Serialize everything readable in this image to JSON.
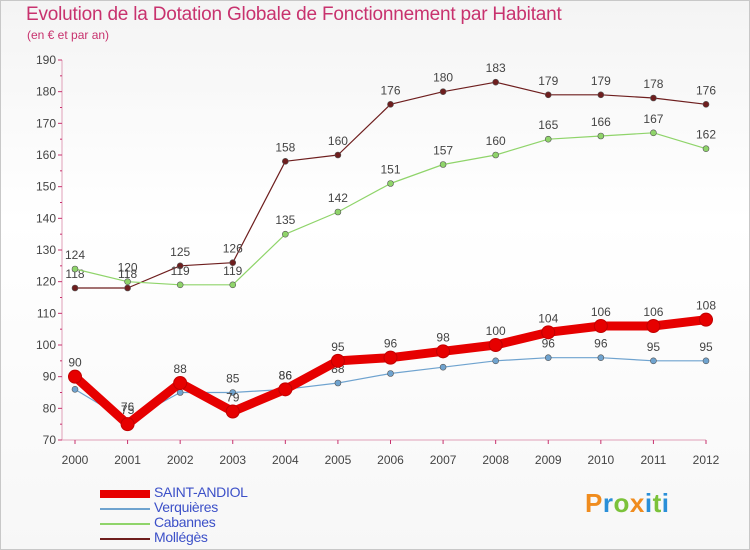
{
  "header": {
    "title": "Evolution de la Dotation Globale de Fonctionnement par Habitant",
    "subtitle": "(en € et par an)"
  },
  "logo": {
    "letters": [
      "P",
      "r",
      "o",
      "x",
      "i",
      "t",
      "i"
    ],
    "colors": [
      "#f08c1e",
      "#2a8fd8",
      "#7bc23a",
      "#f08c1e",
      "#2a8fd8",
      "#7bc23a",
      "#2a8fd8"
    ]
  },
  "chart_data": {
    "type": "line",
    "title": "Evolution de la Dotation Globale de Fonctionnement par Habitant",
    "subtitle": "(en € et par an)",
    "xlabel": "",
    "ylabel": "",
    "ylim": [
      70,
      190
    ],
    "yticks": [
      70,
      80,
      90,
      100,
      110,
      120,
      130,
      140,
      150,
      160,
      170,
      180,
      190
    ],
    "grid": false,
    "legend_position": "bottom-left",
    "categories": [
      "2000",
      "2001",
      "2002",
      "2003",
      "2004",
      "2005",
      "2006",
      "2007",
      "2008",
      "2009",
      "2010",
      "2011",
      "2012"
    ],
    "series": [
      {
        "name": "Mollégès",
        "color": "#6e1e1e",
        "values": [
          118,
          118,
          125,
          126,
          158,
          160,
          176,
          180,
          183,
          179,
          179,
          178,
          176
        ],
        "labels": [
          "118",
          "118",
          "125",
          "126",
          "158",
          "160",
          "176",
          "180",
          "183",
          "179",
          "179",
          "178",
          "176"
        ]
      },
      {
        "name": "Cabannes",
        "color": "#8fd46a",
        "values": [
          124,
          120,
          119,
          119,
          135,
          142,
          151,
          157,
          160,
          165,
          166,
          167,
          162
        ],
        "labels": [
          "124",
          "120",
          "119",
          "119",
          "135",
          "142",
          "151",
          "157",
          "160",
          "165",
          "166",
          "167",
          "162"
        ]
      },
      {
        "name": "Verquières",
        "color": "#6fa3cf",
        "values": [
          86,
          76,
          85,
          85,
          86,
          88,
          91,
          93,
          95,
          96,
          96,
          95,
          95
        ],
        "labels": [
          "",
          "76",
          "",
          "85",
          "86",
          "88",
          "",
          "",
          "",
          "96",
          "96",
          "95",
          "95"
        ]
      },
      {
        "name": "SAINT-ANDIOL",
        "color": "#e60000",
        "values": [
          90,
          75,
          88,
          79,
          86,
          95,
          96,
          98,
          100,
          104,
          106,
          106,
          108
        ],
        "labels": [
          "90",
          "75",
          "88",
          "79",
          "86",
          "95",
          "96",
          "98",
          "100",
          "104",
          "106",
          "106",
          "108"
        ]
      }
    ],
    "legend": [
      {
        "name": "SAINT-ANDIOL",
        "color": "#e60000"
      },
      {
        "name": "Verquières",
        "color": "#6fa3cf"
      },
      {
        "name": "Cabannes",
        "color": "#8fd46a"
      },
      {
        "name": "Mollégès",
        "color": "#6e1e1e"
      }
    ]
  }
}
